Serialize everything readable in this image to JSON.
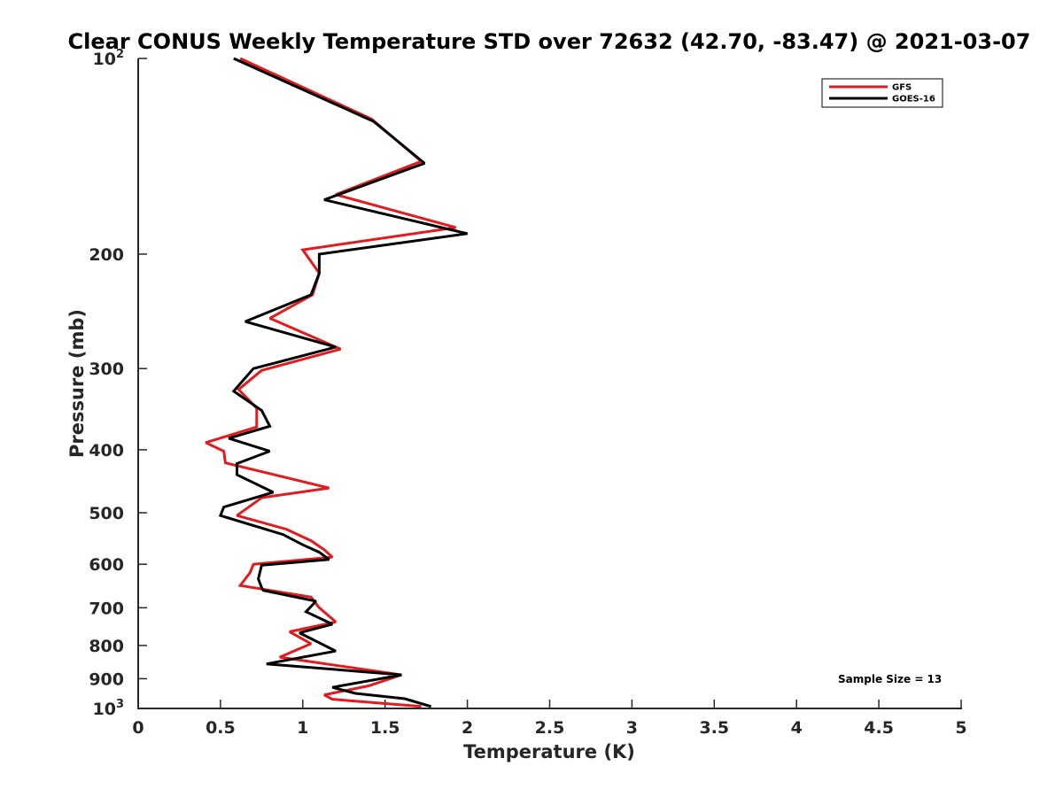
{
  "chart_data": {
    "type": "line",
    "title": "Clear CONUS Weekly Temperature STD over 72632 (42.70, -83.47) @ 2021-03-07",
    "xlabel": "Temperature (K)",
    "ylabel": "Pressure (mb)",
    "xlim": [
      0,
      5
    ],
    "ylim": [
      100,
      1000
    ],
    "y_scale": "log",
    "y_reversed": true,
    "x_ticks": [
      {
        "value": 0,
        "label": "0"
      },
      {
        "value": 0.5,
        "label": "0.5"
      },
      {
        "value": 1,
        "label": "1"
      },
      {
        "value": 1.5,
        "label": "1.5"
      },
      {
        "value": 2,
        "label": "2"
      },
      {
        "value": 2.5,
        "label": "2.5"
      },
      {
        "value": 3,
        "label": "3"
      },
      {
        "value": 3.5,
        "label": "3.5"
      },
      {
        "value": 4,
        "label": "4"
      },
      {
        "value": 4.5,
        "label": "4.5"
      },
      {
        "value": 5,
        "label": "5"
      }
    ],
    "y_ticks": [
      {
        "value": 100,
        "base": "10",
        "exp": "2"
      },
      {
        "value": 200,
        "label": "200"
      },
      {
        "value": 300,
        "label": "300"
      },
      {
        "value": 400,
        "label": "400"
      },
      {
        "value": 500,
        "label": "500"
      },
      {
        "value": 600,
        "label": "600"
      },
      {
        "value": 700,
        "label": "700"
      },
      {
        "value": 800,
        "label": "800"
      },
      {
        "value": 900,
        "label": "900"
      },
      {
        "value": 1000,
        "base": "10",
        "exp": "3"
      }
    ],
    "grid": false,
    "legend_position": "top-right",
    "annotation": "Sample Size = 13",
    "series": [
      {
        "name": "GFS",
        "color": "#e41a1c",
        "points": [
          [
            0.62,
            100
          ],
          [
            1.42,
            124
          ],
          [
            1.72,
            144
          ],
          [
            1.2,
            162
          ],
          [
            1.93,
            182
          ],
          [
            1.0,
            197
          ],
          [
            1.1,
            214
          ],
          [
            1.06,
            231
          ],
          [
            0.8,
            251
          ],
          [
            1.23,
            280
          ],
          [
            0.75,
            302
          ],
          [
            0.61,
            323
          ],
          [
            0.72,
            345
          ],
          [
            0.72,
            369
          ],
          [
            0.41,
            390
          ],
          [
            0.52,
            402
          ],
          [
            0.53,
            419
          ],
          [
            1.16,
            458
          ],
          [
            0.75,
            474
          ],
          [
            0.6,
            505
          ],
          [
            0.9,
            530
          ],
          [
            1.05,
            552
          ],
          [
            1.13,
            570
          ],
          [
            1.18,
            585
          ],
          [
            0.7,
            600
          ],
          [
            0.68,
            618
          ],
          [
            0.62,
            647
          ],
          [
            1.05,
            674
          ],
          [
            1.1,
            700
          ],
          [
            1.2,
            736
          ],
          [
            0.92,
            762
          ],
          [
            1.05,
            795
          ],
          [
            0.86,
            834
          ],
          [
            1.6,
            888
          ],
          [
            1.4,
            923
          ],
          [
            1.13,
            953
          ],
          [
            1.18,
            968
          ],
          [
            1.72,
            993
          ]
        ]
      },
      {
        "name": "GOES-16",
        "color": "#000000",
        "points": [
          [
            0.58,
            100
          ],
          [
            1.43,
            125
          ],
          [
            1.74,
            145
          ],
          [
            1.13,
            165
          ],
          [
            2.0,
            186
          ],
          [
            1.1,
            200
          ],
          [
            1.1,
            214
          ],
          [
            1.05,
            231
          ],
          [
            0.65,
            254
          ],
          [
            1.2,
            278
          ],
          [
            0.7,
            300
          ],
          [
            0.58,
            325
          ],
          [
            0.75,
            348
          ],
          [
            0.8,
            368
          ],
          [
            0.55,
            384
          ],
          [
            0.8,
            402
          ],
          [
            0.6,
            420
          ],
          [
            0.6,
            437
          ],
          [
            0.82,
            465
          ],
          [
            0.52,
            490
          ],
          [
            0.5,
            505
          ],
          [
            0.88,
            540
          ],
          [
            1.0,
            560
          ],
          [
            1.1,
            575
          ],
          [
            1.16,
            590
          ],
          [
            0.75,
            602
          ],
          [
            0.73,
            632
          ],
          [
            0.75,
            652
          ],
          [
            0.76,
            658
          ],
          [
            1.08,
            684
          ],
          [
            1.02,
            710
          ],
          [
            1.18,
            742
          ],
          [
            0.98,
            765
          ],
          [
            1.2,
            816
          ],
          [
            0.78,
            854
          ],
          [
            1.6,
            888
          ],
          [
            1.18,
            928
          ],
          [
            1.32,
            948
          ],
          [
            1.62,
            966
          ],
          [
            1.78,
            993
          ]
        ]
      }
    ]
  }
}
